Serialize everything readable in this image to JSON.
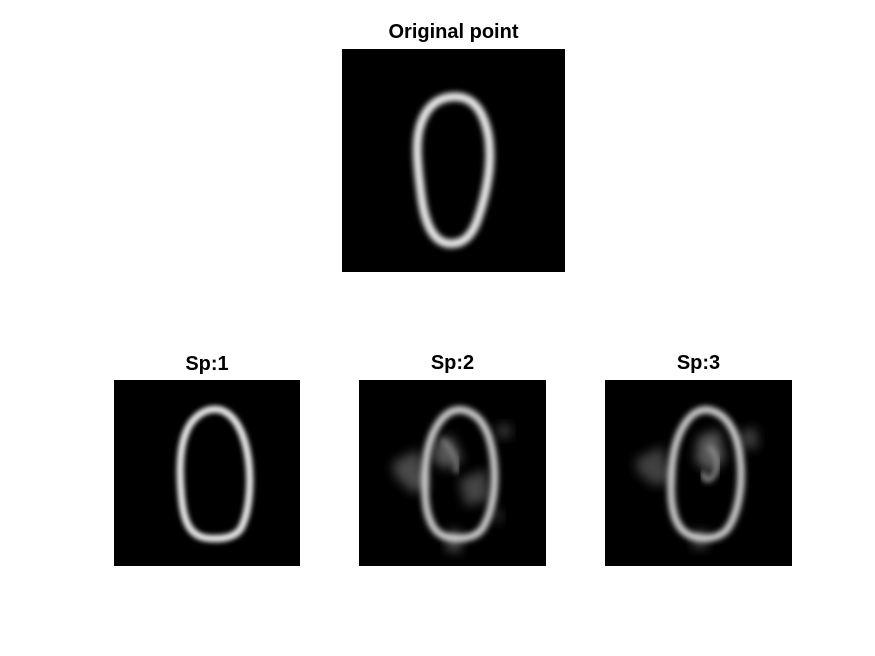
{
  "figure": {
    "background": "#ffffff",
    "image_background": "#000000",
    "stroke_color": "#ffffff",
    "panels": [
      {
        "id": "original",
        "title": "Original point",
        "content": "handwritten digit zero"
      },
      {
        "id": "sp1",
        "title": "Sp:1",
        "content": "clean reconstructed zero"
      },
      {
        "id": "sp2",
        "title": "Sp:2",
        "content": "noisy reconstructed zero"
      },
      {
        "id": "sp3",
        "title": "Sp:3",
        "content": "noisy reconstructed zero"
      }
    ]
  }
}
